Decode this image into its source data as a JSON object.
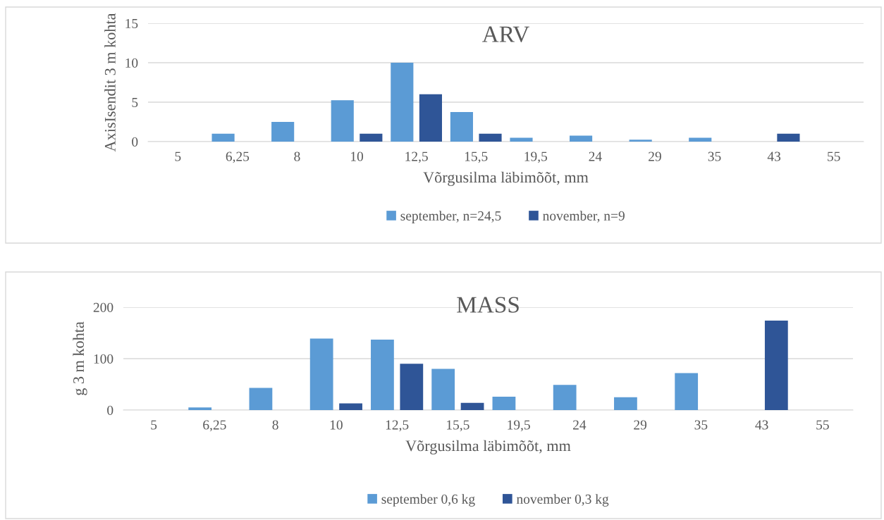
{
  "chart_data": [
    {
      "type": "bar",
      "title": "ARV",
      "xlabel": "Võrgusilma läbimõõt, mm",
      "ylabel": "AxisIsendit 3 m kohta",
      "categories": [
        "5",
        "6,25",
        "8",
        "10",
        "12,5",
        "15,5",
        "19,5",
        "24",
        "29",
        "35",
        "43",
        "55"
      ],
      "series": [
        {
          "name": "september, n=24,5",
          "color": "#5b9bd5",
          "values": [
            null,
            1,
            2.5,
            5.25,
            10,
            3.75,
            0.5,
            0.75,
            0.25,
            0.5,
            null,
            null
          ]
        },
        {
          "name": "november, n=9",
          "color": "#2f5597",
          "values": [
            null,
            null,
            null,
            1,
            6,
            1,
            null,
            null,
            null,
            null,
            1,
            null
          ]
        }
      ],
      "ylim": [
        0,
        15
      ],
      "yticks": [
        0,
        5,
        10,
        15
      ],
      "grid": "y",
      "legend": "bottom"
    },
    {
      "type": "bar",
      "title": "MASS",
      "xlabel": "Võrgusilma läbimõõt, mm",
      "ylabel": "g 3 m kohta",
      "categories": [
        "5",
        "6,25",
        "8",
        "10",
        "12,5",
        "15,5",
        "19,5",
        "24",
        "29",
        "35",
        "43",
        "55"
      ],
      "series": [
        {
          "name": "september 0,6 kg",
          "color": "#5b9bd5",
          "values": [
            null,
            5,
            43,
            139,
            137,
            80,
            26,
            49,
            25,
            72,
            null,
            null
          ]
        },
        {
          "name": "november 0,3 kg",
          "color": "#2f5597",
          "values": [
            null,
            null,
            null,
            13,
            90,
            14,
            null,
            null,
            null,
            null,
            174,
            null
          ]
        }
      ],
      "ylim": [
        0,
        200
      ],
      "yticks": [
        0,
        100,
        200
      ],
      "grid": "y",
      "legend": "bottom"
    }
  ]
}
